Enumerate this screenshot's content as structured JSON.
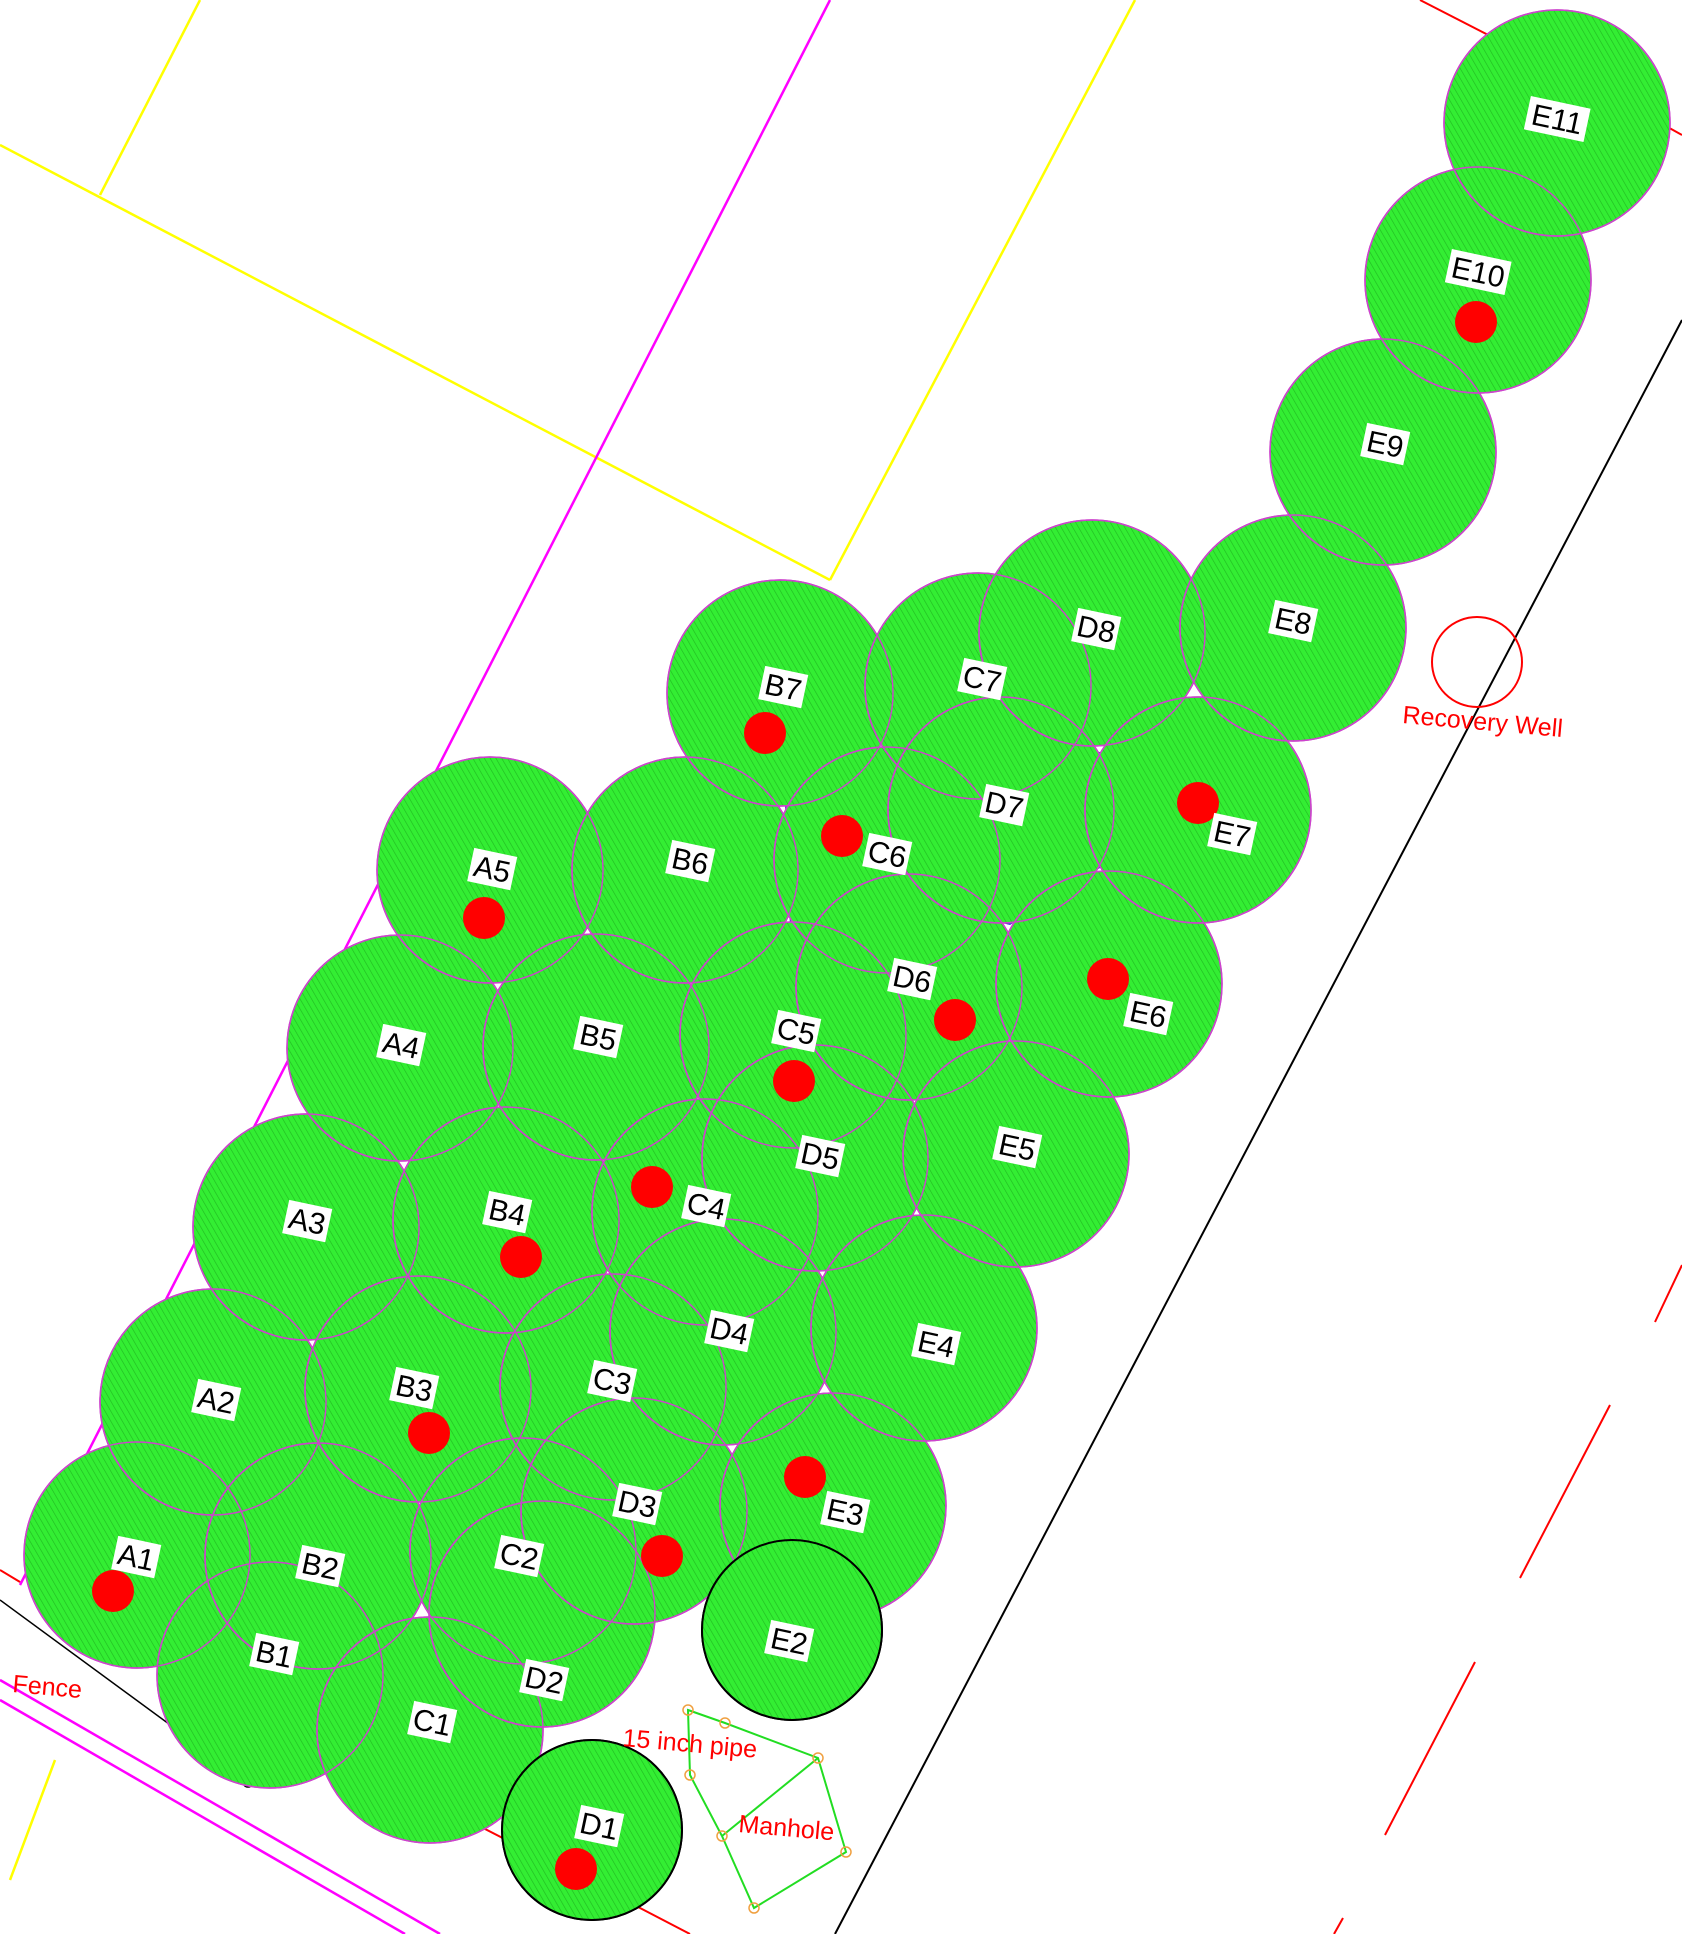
{
  "colors": {
    "fill_green": "#33ee33",
    "circle_outline": "#cc44cc",
    "dead_zone": "#3333dd",
    "sample_dot": "#ff0000",
    "property_line": "#ff00ff",
    "parcel_line": "#ffff00",
    "annotation": "#ff0000",
    "manhole": "#22dd22"
  },
  "labels": {
    "A1": "A1",
    "A2": "A2",
    "A3": "A3",
    "A4": "A4",
    "A5": "A5",
    "B1": "B1",
    "B2": "B2",
    "B3": "B3",
    "B4": "B4",
    "B5": "B5",
    "B6": "B6",
    "B7": "B7",
    "C1": "C1",
    "C2": "C2",
    "C3": "C3",
    "C4": "C4",
    "C5": "C5",
    "C6": "C6",
    "C7": "C7",
    "D1": "D1",
    "D2": "D2",
    "D3": "D3",
    "D4": "D4",
    "D5": "D5",
    "D6": "D6",
    "D7": "D7",
    "D8": "D8",
    "E2": "E2",
    "E3": "E3",
    "E4": "E4",
    "E5": "E5",
    "E6": "E6",
    "E7": "E7",
    "E8": "E8",
    "E9": "E9",
    "E10": "E10",
    "E11": "E11"
  },
  "annotations": {
    "recovery_well": "Recovery Well",
    "fence": "Fence",
    "pipe": "15 inch pipe",
    "manhole": "Manhole"
  },
  "sampled_points": [
    "A1",
    "A5",
    "B3",
    "B4",
    "B7",
    "C4",
    "C5",
    "C6",
    "D1",
    "D3",
    "D6",
    "E3",
    "E6",
    "E7",
    "E10"
  ],
  "dark_outline_circles": [
    "D1",
    "E2"
  ]
}
